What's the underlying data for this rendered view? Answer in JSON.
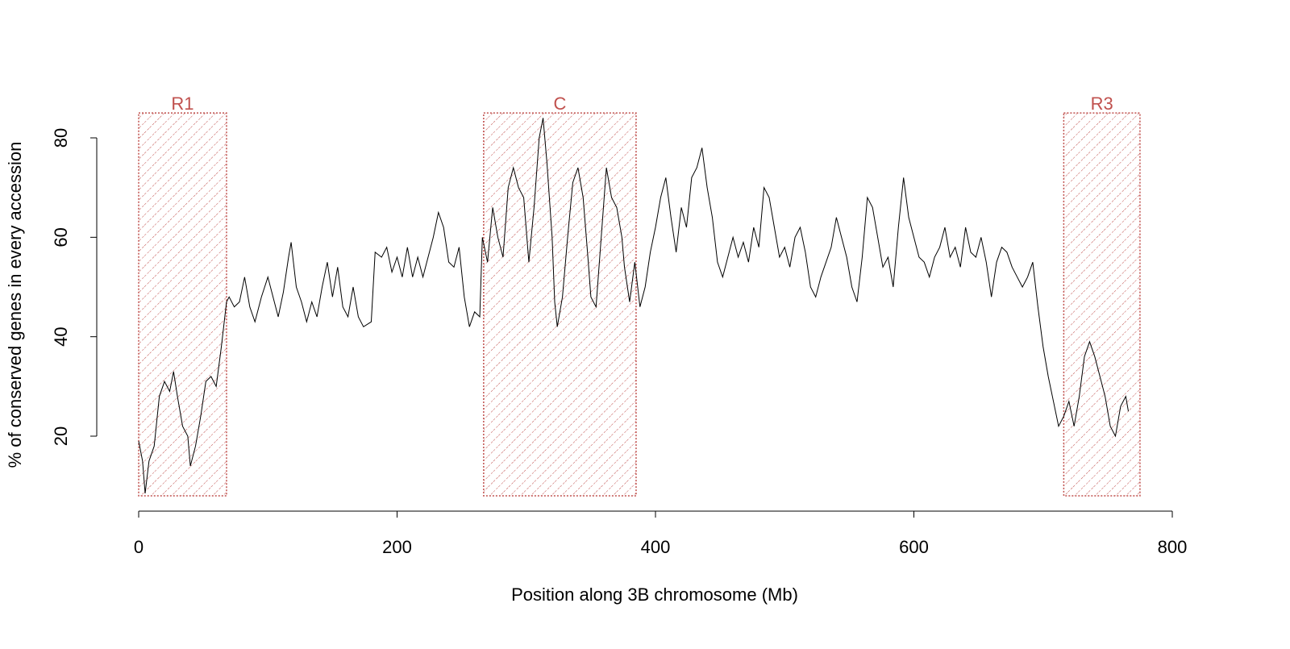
{
  "chart_data": {
    "type": "line",
    "x_label": "Position along 3B chromosome (Mb)",
    "y_label": "% of conserved genes in every accession",
    "xlim": [
      0,
      800
    ],
    "xticks": [
      0,
      200,
      400,
      600,
      800
    ],
    "ylim": [
      20,
      80
    ],
    "yticks": [
      20,
      40,
      60,
      80
    ],
    "color": "#000000",
    "region_color": "#c0504d",
    "regions": [
      {
        "label": "R1",
        "start": 0,
        "end": 68,
        "ymin": 8,
        "ymax": 85
      },
      {
        "label": "C",
        "start": 267,
        "end": 385,
        "ymin": 8,
        "ymax": 85
      },
      {
        "label": "R3",
        "start": 716,
        "end": 775,
        "ymin": 8,
        "ymax": 85
      }
    ],
    "x": [
      0,
      3,
      5,
      8,
      12,
      16,
      20,
      24,
      27,
      30,
      34,
      38,
      40,
      44,
      48,
      52,
      56,
      60,
      64,
      68,
      70,
      74,
      78,
      82,
      86,
      90,
      95,
      100,
      104,
      108,
      112,
      116,
      118,
      122,
      126,
      130,
      134,
      138,
      142,
      146,
      150,
      154,
      158,
      162,
      166,
      170,
      174,
      180,
      183,
      188,
      192,
      196,
      200,
      204,
      208,
      212,
      216,
      220,
      224,
      228,
      232,
      236,
      240,
      244,
      248,
      252,
      256,
      260,
      264,
      266,
      270,
      274,
      278,
      282,
      286,
      290,
      294,
      298,
      302,
      306,
      310,
      313,
      316,
      320,
      322,
      324,
      328,
      332,
      336,
      340,
      344,
      348,
      350,
      354,
      358,
      362,
      366,
      370,
      374,
      376,
      380,
      384,
      388,
      392,
      396,
      400,
      404,
      408,
      412,
      416,
      420,
      424,
      428,
      432,
      436,
      440,
      444,
      448,
      452,
      456,
      460,
      464,
      468,
      472,
      476,
      480,
      484,
      488,
      492,
      496,
      500,
      504,
      508,
      512,
      516,
      520,
      524,
      528,
      532,
      536,
      540,
      544,
      548,
      552,
      556,
      560,
      564,
      568,
      572,
      576,
      580,
      584,
      588,
      592,
      596,
      600,
      604,
      608,
      612,
      616,
      620,
      624,
      628,
      632,
      636,
      640,
      644,
      648,
      652,
      656,
      660,
      664,
      668,
      672,
      676,
      680,
      684,
      688,
      692,
      696,
      700,
      704,
      708,
      712,
      716,
      720,
      724,
      728,
      732,
      736,
      740,
      744,
      748,
      752,
      756,
      760,
      764,
      766
    ],
    "values": [
      19,
      15,
      8.5,
      15,
      18,
      28,
      31,
      29,
      33,
      28,
      22,
      20,
      14,
      18,
      24,
      31,
      32,
      30,
      38,
      47,
      48,
      46,
      47,
      52,
      46,
      43,
      48,
      52,
      48,
      44,
      49,
      56,
      59,
      50,
      47,
      43,
      47,
      44,
      50,
      55,
      48,
      54,
      46,
      44,
      50,
      44,
      42,
      43,
      57,
      56,
      58,
      53,
      56,
      52,
      58,
      52,
      56,
      52,
      56,
      60,
      65,
      62,
      55,
      54,
      58,
      48,
      42,
      45,
      44,
      60,
      55,
      66,
      60,
      56,
      70,
      74,
      70,
      68,
      55,
      66,
      80,
      84,
      75,
      60,
      47,
      42,
      48,
      60,
      71,
      74,
      68,
      55,
      48,
      46,
      60,
      74,
      68,
      66,
      60,
      54,
      47,
      55,
      46,
      50,
      57,
      62,
      68,
      72,
      64,
      57,
      66,
      62,
      72,
      74,
      78,
      70,
      64,
      55,
      52,
      56,
      60,
      56,
      59,
      55,
      62,
      58,
      70,
      68,
      62,
      56,
      58,
      54,
      60,
      62,
      57,
      50,
      48,
      52,
      55,
      58,
      64,
      60,
      56,
      50,
      47,
      56,
      68,
      66,
      60,
      54,
      56,
      50,
      62,
      72,
      64,
      60,
      56,
      55,
      52,
      56,
      58,
      62,
      56,
      58,
      54,
      62,
      57,
      56,
      60,
      55,
      48,
      55,
      58,
      57,
      54,
      52,
      50,
      52,
      55,
      46,
      38,
      32,
      27,
      22,
      24,
      27,
      22,
      28,
      36,
      39,
      36,
      32,
      28,
      22,
      20,
      26,
      28,
      25
    ]
  }
}
